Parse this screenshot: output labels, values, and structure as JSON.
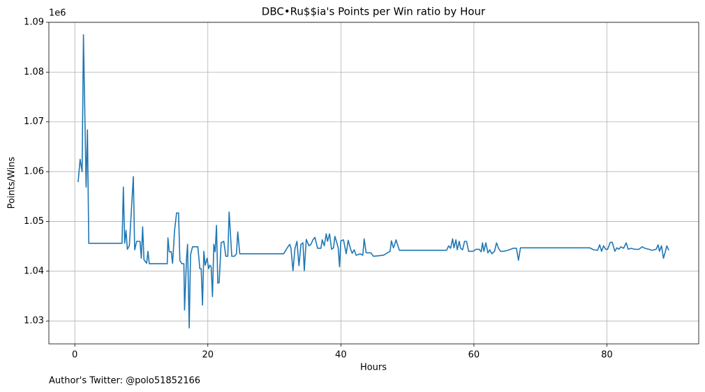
{
  "chart_data": {
    "type": "line",
    "title": "DBC•Ru$$ia's Points per Win ratio by Hour",
    "xlabel": "Hours",
    "ylabel": "Points/Wins",
    "offset_text": "1e6",
    "annotation": "Author's Twitter: @polo51852166",
    "color": "#1f77b4",
    "grid": true,
    "xlim": [
      -3.9,
      93.8
    ],
    "ylim": [
      1.0254,
      1.09
    ],
    "xticks": [
      0,
      20,
      40,
      60,
      80
    ],
    "yticks": [
      1.03,
      1.04,
      1.05,
      1.06,
      1.07,
      1.08,
      1.09
    ],
    "x": [
      0.5,
      0.8,
      1.1,
      1.3,
      1.7,
      1.9,
      2.1,
      7.1,
      7.3,
      7.5,
      7.7,
      7.9,
      8.2,
      8.8,
      9.0,
      9.3,
      9.8,
      10.0,
      10.2,
      10.4,
      10.8,
      11.0,
      11.2,
      13.9,
      14.0,
      14.2,
      14.5,
      14.7,
      15.0,
      15.3,
      15.6,
      15.8,
      16.1,
      16.4,
      16.5,
      16.8,
      16.95,
      17.2,
      17.4,
      17.7,
      18.5,
      18.8,
      19.0,
      19.2,
      19.4,
      19.6,
      19.9,
      20.1,
      20.3,
      20.5,
      20.7,
      20.9,
      21.1,
      21.3,
      21.5,
      21.7,
      22.0,
      22.4,
      22.7,
      23.0,
      23.2,
      23.6,
      24.0,
      24.3,
      24.5,
      24.8,
      31.4,
      31.8,
      32.3,
      32.5,
      32.8,
      33.1,
      33.4,
      33.7,
      34.0,
      34.3,
      34.5,
      34.8,
      35.2,
      35.5,
      35.8,
      36.1,
      36.5,
      37.0,
      37.2,
      37.5,
      37.8,
      38.0,
      38.3,
      38.6,
      38.9,
      39.1,
      39.4,
      39.6,
      39.8,
      40.0,
      40.4,
      40.8,
      41.1,
      41.5,
      41.7,
      42.0,
      42.3,
      42.9,
      43.3,
      43.5,
      43.8,
      44.3,
      44.5,
      44.9,
      46.4,
      47.0,
      47.4,
      47.6,
      47.9,
      48.1,
      48.3,
      48.5,
      48.8,
      55.9,
      56.2,
      56.5,
      56.8,
      57.0,
      57.3,
      57.5,
      57.8,
      58.0,
      58.3,
      58.6,
      58.9,
      59.2,
      59.9,
      60.3,
      60.8,
      61.1,
      61.3,
      61.5,
      61.8,
      62.1,
      62.4,
      62.7,
      63.1,
      63.4,
      63.7,
      64.0,
      64.5,
      65.1,
      65.9,
      66.4,
      66.7,
      67.0,
      77.4,
      78.0,
      78.6,
      78.9,
      79.2,
      79.5,
      79.8,
      80.1,
      80.5,
      80.8,
      81.2,
      81.5,
      81.8,
      82.1,
      82.5,
      82.9,
      83.2,
      83.6,
      84.2,
      84.8,
      85.3,
      85.7,
      86.3,
      86.8,
      87.4,
      87.7,
      87.9,
      88.2,
      88.5,
      88.8,
      89.0,
      89.3
    ],
    "values": [
      1.0579,
      1.0625,
      1.06,
      1.0875,
      1.0569,
      1.0684,
      1.0456,
      1.0456,
      1.0569,
      1.0456,
      1.0482,
      1.0444,
      1.0451,
      1.059,
      1.0443,
      1.046,
      1.046,
      1.0426,
      1.0489,
      1.0423,
      1.0416,
      1.044,
      1.0415,
      1.0415,
      1.0467,
      1.0439,
      1.0439,
      1.0416,
      1.0482,
      1.0517,
      1.0517,
      1.0421,
      1.0415,
      1.0415,
      1.0322,
      1.0426,
      1.0454,
      1.0286,
      1.0433,
      1.0449,
      1.0449,
      1.0405,
      1.0405,
      1.0332,
      1.044,
      1.0412,
      1.0426,
      1.0405,
      1.0412,
      1.0409,
      1.0349,
      1.0454,
      1.0439,
      1.0492,
      1.0376,
      1.0377,
      1.0457,
      1.046,
      1.043,
      1.043,
      1.0519,
      1.043,
      1.043,
      1.0435,
      1.0479,
      1.0435,
      1.0435,
      1.0444,
      1.0454,
      1.0446,
      1.0401,
      1.0446,
      1.046,
      1.0411,
      1.0454,
      1.0457,
      1.0401,
      1.0464,
      1.0451,
      1.0454,
      1.0463,
      1.0468,
      1.0446,
      1.0446,
      1.0463,
      1.0451,
      1.0475,
      1.046,
      1.0475,
      1.0444,
      1.0447,
      1.047,
      1.0457,
      1.0447,
      1.0409,
      1.0461,
      1.0463,
      1.0435,
      1.0462,
      1.0443,
      1.0436,
      1.0443,
      1.0432,
      1.0435,
      1.0432,
      1.0465,
      1.0437,
      1.0437,
      1.0437,
      1.043,
      1.0432,
      1.0437,
      1.044,
      1.0461,
      1.0447,
      1.0454,
      1.0463,
      1.0454,
      1.0442,
      1.0442,
      1.0451,
      1.0446,
      1.0465,
      1.0447,
      1.0463,
      1.0443,
      1.046,
      1.0446,
      1.0443,
      1.046,
      1.046,
      1.044,
      1.044,
      1.0444,
      1.0444,
      1.0439,
      1.0457,
      1.044,
      1.0457,
      1.0437,
      1.0443,
      1.0435,
      1.044,
      1.0457,
      1.0446,
      1.044,
      1.044,
      1.0442,
      1.0446,
      1.0446,
      1.0422,
      1.0447,
      1.0447,
      1.0443,
      1.0442,
      1.0453,
      1.044,
      1.0451,
      1.0444,
      1.0444,
      1.0458,
      1.0458,
      1.044,
      1.0447,
      1.0444,
      1.0449,
      1.0446,
      1.0457,
      1.0444,
      1.0446,
      1.0444,
      1.0444,
      1.0449,
      1.0446,
      1.0444,
      1.0442,
      1.0444,
      1.0453,
      1.044,
      1.0451,
      1.0426,
      1.044,
      1.0451,
      1.0442
    ]
  }
}
